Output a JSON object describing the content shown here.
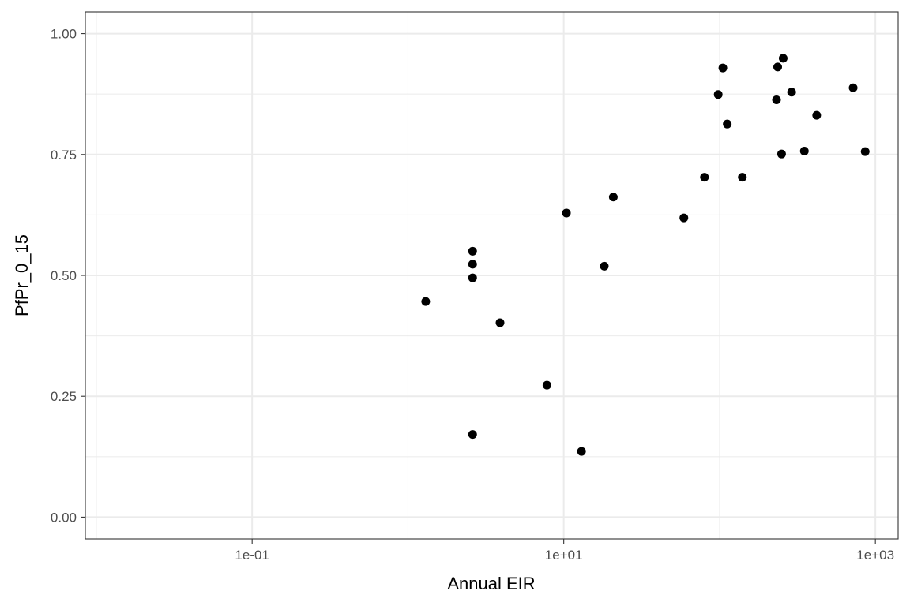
{
  "chart_data": {
    "type": "scatter",
    "title": "",
    "xlabel": "Annual EIR",
    "ylabel": "PfPr_0_15",
    "x_scale": "log10",
    "xlim": [
      0.0085,
      1400
    ],
    "ylim": [
      -0.045,
      1.045
    ],
    "x_ticks": [
      {
        "value": 0.1,
        "label": "1e-01"
      },
      {
        "value": 10,
        "label": "1e+01"
      },
      {
        "value": 1000,
        "label": "1e+03"
      }
    ],
    "x_minor_gridlines": [
      0.01,
      1,
      100
    ],
    "y_ticks": [
      {
        "value": 0,
        "label": "0.00"
      },
      {
        "value": 0.25,
        "label": "0.25"
      },
      {
        "value": 0.5,
        "label": "0.50"
      },
      {
        "value": 0.75,
        "label": "0.75"
      },
      {
        "value": 1,
        "label": "1.00"
      }
    ],
    "y_minor_gridlines": [
      0.125,
      0.375,
      0.625,
      0.875
    ],
    "grid": true,
    "legend": "none",
    "point_color": "#000000",
    "points": [
      {
        "x": 1.3,
        "y": 0.446
      },
      {
        "x": 2.6,
        "y": 0.55
      },
      {
        "x": 2.6,
        "y": 0.523
      },
      {
        "x": 2.6,
        "y": 0.495
      },
      {
        "x": 2.6,
        "y": 0.171
      },
      {
        "x": 3.9,
        "y": 0.402
      },
      {
        "x": 7.8,
        "y": 0.273
      },
      {
        "x": 10.4,
        "y": 0.629
      },
      {
        "x": 13.0,
        "y": 0.136
      },
      {
        "x": 18.2,
        "y": 0.519
      },
      {
        "x": 20.8,
        "y": 0.662
      },
      {
        "x": 59.0,
        "y": 0.619
      },
      {
        "x": 80.0,
        "y": 0.703
      },
      {
        "x": 98.0,
        "y": 0.874
      },
      {
        "x": 105.0,
        "y": 0.929
      },
      {
        "x": 112.0,
        "y": 0.813
      },
      {
        "x": 140.0,
        "y": 0.703
      },
      {
        "x": 232.0,
        "y": 0.863
      },
      {
        "x": 236.0,
        "y": 0.931
      },
      {
        "x": 250.0,
        "y": 0.751
      },
      {
        "x": 256.0,
        "y": 0.949
      },
      {
        "x": 290.0,
        "y": 0.879
      },
      {
        "x": 350.0,
        "y": 0.757
      },
      {
        "x": 420.0,
        "y": 0.831
      },
      {
        "x": 720.0,
        "y": 0.888
      },
      {
        "x": 860.0,
        "y": 0.756
      }
    ]
  }
}
